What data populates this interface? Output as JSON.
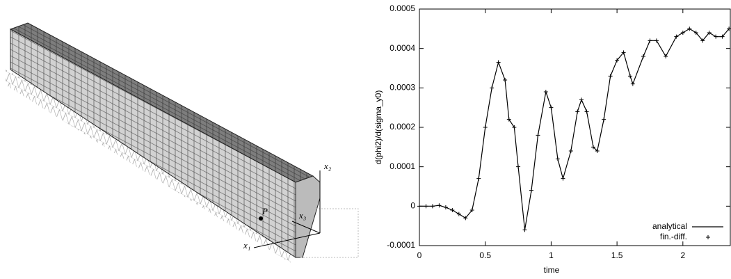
{
  "diagram": {
    "labels": {
      "x1": "x₁",
      "x2": "x₂",
      "x3": "x₃",
      "point": "P"
    }
  },
  "chart_data": {
    "type": "line",
    "xlabel": "time",
    "ylabel": "d(phi2)/d(sigma_y0)",
    "x": [
      0,
      0.05,
      0.1,
      0.15,
      0.2,
      0.25,
      0.3,
      0.35,
      0.4,
      0.45,
      0.5,
      0.55,
      0.6,
      0.65,
      0.68,
      0.72,
      0.75,
      0.8,
      0.85,
      0.9,
      0.96,
      1.0,
      1.05,
      1.09,
      1.15,
      1.2,
      1.23,
      1.27,
      1.32,
      1.35,
      1.4,
      1.45,
      1.5,
      1.55,
      1.6,
      1.62,
      1.7,
      1.75,
      1.8,
      1.87,
      1.95,
      2.0,
      2.05,
      2.1,
      2.15,
      2.2,
      2.25,
      2.3,
      2.35
    ],
    "series": [
      {
        "name": "analytical",
        "color": "#000000",
        "marker": "line",
        "values": [
          0,
          0,
          0,
          2e-06,
          -3e-06,
          -1e-05,
          -2e-05,
          -3e-05,
          -1e-05,
          7e-05,
          0.0002,
          0.0003,
          0.000365,
          0.00032,
          0.00022,
          0.0002,
          0.0001,
          -6e-05,
          4e-05,
          0.00018,
          0.00029,
          0.00025,
          0.00012,
          7e-05,
          0.00014,
          0.00024,
          0.00027,
          0.00024,
          0.00015,
          0.00014,
          0.00022,
          0.00033,
          0.00037,
          0.00039,
          0.00033,
          0.00031,
          0.00038,
          0.00042,
          0.00042,
          0.00038,
          0.00043,
          0.00044,
          0.00045,
          0.00044,
          0.00042,
          0.00044,
          0.00043,
          0.00043,
          0.00045
        ]
      },
      {
        "name": "fin.-diff.",
        "color": "#000000",
        "marker": "plus",
        "values": [
          0,
          0,
          0,
          2e-06,
          -3e-06,
          -1e-05,
          -2e-05,
          -3e-05,
          -1e-05,
          7e-05,
          0.0002,
          0.0003,
          0.000365,
          0.00032,
          0.00022,
          0.0002,
          0.0001,
          -6e-05,
          4e-05,
          0.00018,
          0.00029,
          0.00025,
          0.00012,
          7e-05,
          0.00014,
          0.00024,
          0.00027,
          0.00024,
          0.00015,
          0.00014,
          0.00022,
          0.00033,
          0.00037,
          0.00039,
          0.00033,
          0.00031,
          0.00038,
          0.00042,
          0.00042,
          0.00038,
          0.00043,
          0.00044,
          0.00045,
          0.00044,
          0.00042,
          0.00044,
          0.00043,
          0.00043,
          0.00045
        ]
      }
    ],
    "xlim": [
      0,
      2.36
    ],
    "xticks": [
      0,
      0.5,
      1,
      1.5,
      2
    ],
    "ylim": [
      -0.0001,
      0.0005
    ],
    "yticks": [
      -0.0001,
      0,
      0.0001,
      0.0002,
      0.0003,
      0.0004,
      0.0005
    ],
    "legend": "lower right"
  }
}
